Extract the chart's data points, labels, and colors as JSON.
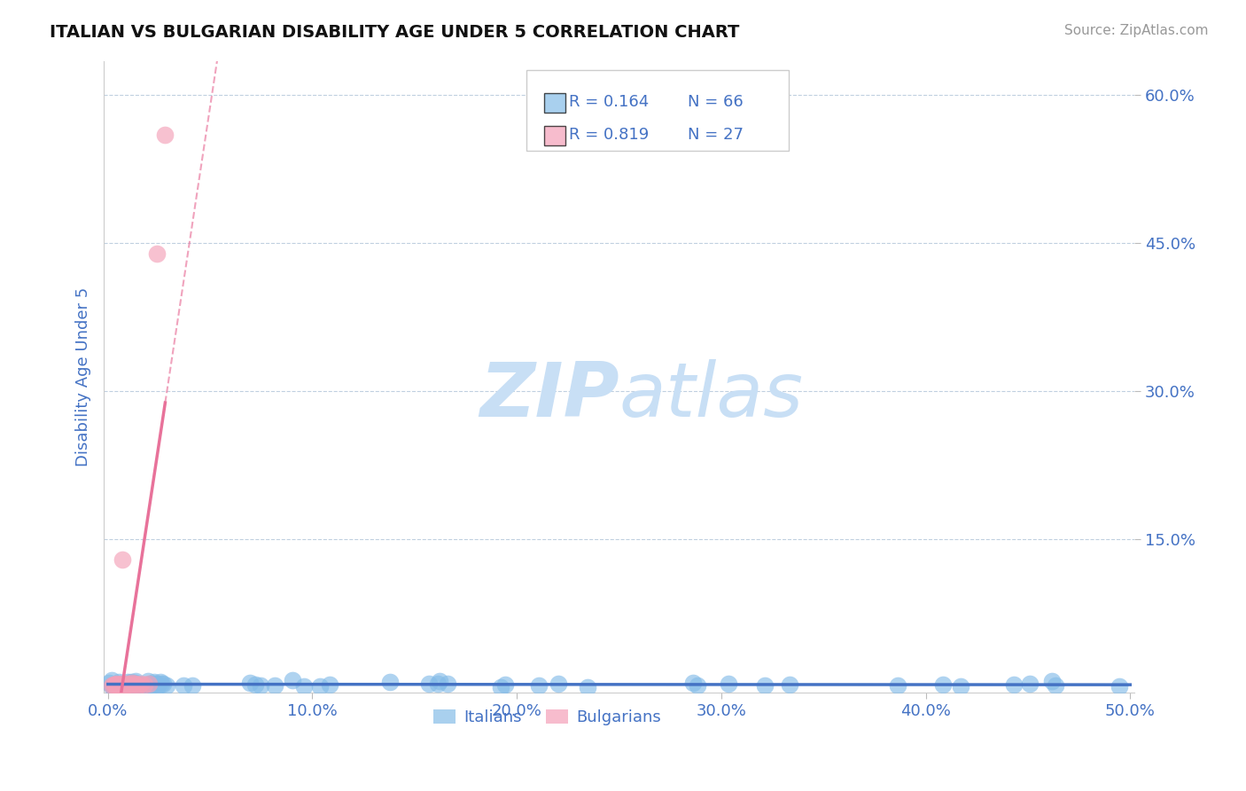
{
  "title": "ITALIAN VS BULGARIAN DISABILITY AGE UNDER 5 CORRELATION CHART",
  "source_text": "Source: ZipAtlas.com",
  "ylabel": "Disability Age Under 5",
  "xlim": [
    -0.002,
    0.502
  ],
  "ylim": [
    -0.005,
    0.635
  ],
  "xtick_labels": [
    "0.0%",
    "10.0%",
    "20.0%",
    "30.0%",
    "40.0%",
    "50.0%"
  ],
  "xtick_values": [
    0.0,
    0.1,
    0.2,
    0.3,
    0.4,
    0.5
  ],
  "ytick_labels": [
    "15.0%",
    "30.0%",
    "45.0%",
    "60.0%"
  ],
  "ytick_values": [
    0.15,
    0.3,
    0.45,
    0.6
  ],
  "italian_R": 0.164,
  "italian_N": 66,
  "bulgarian_R": 0.819,
  "bulgarian_N": 27,
  "italian_color": "#85bce8",
  "bulgarian_color": "#f4a0b8",
  "italian_line_color": "#4472c4",
  "bulgarian_line_color": "#e8729a",
  "legend_color": "#4472c4",
  "watermark_zip_color": "#c8dff5",
  "watermark_atlas_color": "#c8dff5",
  "grid_color": "#c0d0e0",
  "background_color": "#ffffff",
  "title_color": "#111111",
  "axis_label_color": "#4472c4",
  "source_color": "#999999"
}
